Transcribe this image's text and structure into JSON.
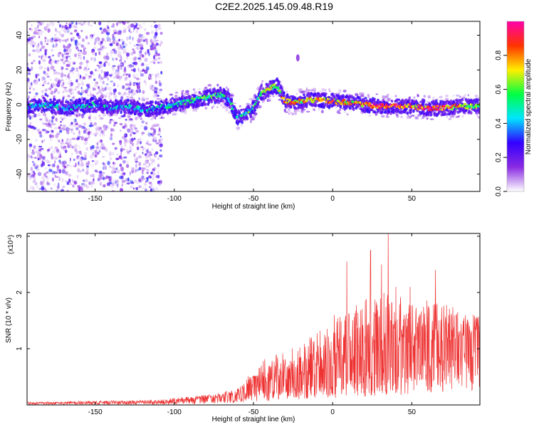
{
  "title": "C2E2.2025.145.09.48.R19",
  "chart_data": [
    {
      "type": "heatmap",
      "xlabel": "Height of straight line (km)",
      "ylabel": "Frequency (Hz)",
      "xlim": [
        -193,
        93
      ],
      "ylim": [
        -50,
        48
      ],
      "xticks": [
        -150,
        -100,
        -50,
        0,
        50
      ],
      "yticks": [
        -40,
        -20,
        0,
        20,
        40
      ],
      "colorbar": {
        "label": "Normalized spectral amplitude",
        "range": [
          0,
          1
        ],
        "ticks": [
          "0.0",
          "0.2",
          "0.4",
          "0.6",
          "0.8"
        ],
        "colors": [
          "#ffffff",
          "#8a2be2",
          "#3300ff",
          "#00e5ff",
          "#00ff44",
          "#ffee00",
          "#ff3300",
          "#ff00aa"
        ]
      },
      "ridge": {
        "x": [
          -193,
          -180,
          -170,
          -160,
          -150,
          -140,
          -130,
          -120,
          -110,
          -100,
          -90,
          -80,
          -70,
          -65,
          -60,
          -55,
          -50,
          -45,
          -40,
          -35,
          -30,
          -25,
          -20,
          -10,
          0,
          10,
          20,
          30,
          40,
          50,
          60,
          70,
          80,
          93
        ],
        "y": [
          -1,
          0,
          -2,
          -1,
          0,
          -2,
          -1,
          -3,
          -2,
          0,
          2,
          4,
          6,
          2,
          -8,
          -5,
          -2,
          7,
          9,
          11,
          2,
          1,
          2,
          3,
          2,
          1,
          0,
          -1,
          -1,
          -1,
          -2,
          -2,
          -1,
          -1
        ],
        "amplitude": [
          0.35,
          0.4,
          0.35,
          0.4,
          0.38,
          0.35,
          0.4,
          0.35,
          0.4,
          0.45,
          0.5,
          0.55,
          0.5,
          0.45,
          0.4,
          0.5,
          0.5,
          0.6,
          0.6,
          0.55,
          0.85,
          0.7,
          0.7,
          0.75,
          0.8,
          0.7,
          0.75,
          0.85,
          0.9,
          0.8,
          0.85,
          0.85,
          0.7,
          0.6
        ]
      }
    },
    {
      "type": "line",
      "xlabel": "Height of straight line (km)",
      "ylabel": "SNR (10 * v/v)",
      "multiplier_label": "(x10⁴)",
      "xlim": [
        -193,
        93
      ],
      "ylim": [
        0,
        3.05
      ],
      "xticks": [
        -150,
        -100,
        -50,
        0,
        50
      ],
      "yticks": [
        1,
        2,
        3
      ],
      "color": "#ee3333",
      "envelope": {
        "x": [
          -193,
          -150,
          -110,
          -95,
          -80,
          -70,
          -60,
          -55,
          -50,
          -40,
          -30,
          -20,
          -10,
          0,
          10,
          20,
          30,
          40,
          50,
          60,
          70,
          80,
          93
        ],
        "base": [
          0.03,
          0.04,
          0.05,
          0.08,
          0.1,
          0.12,
          0.15,
          0.2,
          0.3,
          0.35,
          0.45,
          0.5,
          0.55,
          0.6,
          0.7,
          0.75,
          0.8,
          0.85,
          0.95,
          1.05,
          1.1,
          1.15,
          1.2
        ],
        "top": [
          0.05,
          0.07,
          0.09,
          0.14,
          0.18,
          0.22,
          0.3,
          0.45,
          0.65,
          0.9,
          1.0,
          1.1,
          1.3,
          1.5,
          1.7,
          2.0,
          2.1,
          2.0,
          1.8,
          1.9,
          1.8,
          1.7,
          1.6
        ]
      },
      "peaks": [
        {
          "x": -9,
          "y": 1.05
        },
        {
          "x": 1,
          "y": 1.6
        },
        {
          "x": 9,
          "y": 2.55
        },
        {
          "x": 24,
          "y": 2.75
        },
        {
          "x": 31,
          "y": 2.5
        },
        {
          "x": 35,
          "y": 3.05
        },
        {
          "x": 40,
          "y": 2.1
        },
        {
          "x": 49,
          "y": 2.1
        },
        {
          "x": 65,
          "y": 2.4
        }
      ]
    }
  ]
}
